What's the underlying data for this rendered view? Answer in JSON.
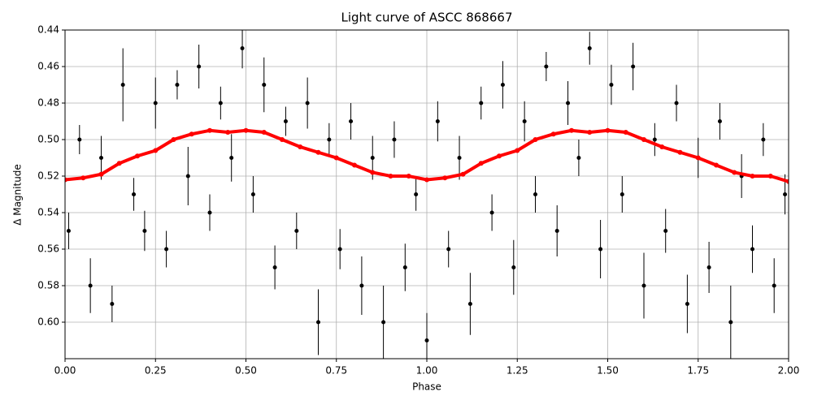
{
  "chart_data": {
    "type": "scatter",
    "title": "Light curve of ASCC 868667",
    "x_label": "Phase",
    "y_label": "Δ Magnitude",
    "xlim": [
      0,
      2
    ],
    "ylim": [
      0.62,
      0.44
    ],
    "y_inverted": true,
    "grid": true,
    "xticks": [
      {
        "value": 0,
        "label": "0.00"
      },
      0.25,
      {
        "value": 0.5,
        "label": "0.50"
      },
      0.75,
      {
        "value": 1,
        "label": "1.00"
      },
      1.25,
      {
        "value": 1.5,
        "label": "1.50"
      },
      1.75,
      {
        "value": 2,
        "label": "2.00"
      }
    ],
    "yticks": [
      0.44,
      0.46,
      0.48,
      {
        "value": 0.5,
        "label": "0.50"
      },
      0.52,
      0.54,
      0.56,
      0.58,
      {
        "value": 0.6,
        "label": "0.60"
      }
    ],
    "scatter": {
      "color": "#000000",
      "x": [
        0.01,
        0.04,
        0.07,
        0.1,
        0.13,
        0.16,
        0.19,
        0.22,
        0.25,
        0.28,
        0.31,
        0.34,
        0.37,
        0.4,
        0.43,
        0.46,
        0.49,
        0.52,
        0.55,
        0.58,
        0.61,
        0.64,
        0.67,
        0.7,
        0.73,
        0.76,
        0.79,
        0.82,
        0.85,
        0.88,
        0.91,
        0.94,
        0.97,
        1.0,
        1.03,
        1.06,
        1.09,
        1.12,
        1.15,
        1.18,
        1.21,
        1.24,
        1.27,
        1.3,
        1.33,
        1.36,
        1.39,
        1.42,
        1.45,
        1.48,
        1.51,
        1.54,
        1.57,
        1.6,
        1.63,
        1.66,
        1.69,
        1.72,
        1.75,
        1.78,
        1.81,
        1.84,
        1.87,
        1.9,
        1.93,
        1.96,
        1.99
      ],
      "values": [
        0.55,
        0.5,
        0.58,
        0.51,
        0.59,
        0.47,
        0.53,
        0.55,
        0.48,
        0.56,
        0.47,
        0.52,
        0.46,
        0.54,
        0.48,
        0.51,
        0.45,
        0.53,
        0.47,
        0.57,
        0.49,
        0.55,
        0.48,
        0.6,
        0.5,
        0.56,
        0.49,
        0.58,
        0.51,
        0.6,
        0.5,
        0.57,
        0.53,
        0.61,
        0.49,
        0.56,
        0.51,
        0.59,
        0.48,
        0.54,
        0.47,
        0.57,
        0.49,
        0.53,
        0.46,
        0.55,
        0.48,
        0.51,
        0.45,
        0.56,
        0.47,
        0.53,
        0.46,
        0.58,
        0.5,
        0.55,
        0.48,
        0.59,
        0.51,
        0.57,
        0.49,
        0.6,
        0.52,
        0.56,
        0.5,
        0.58,
        0.53
      ],
      "errors": [
        0.01,
        0.008,
        0.015,
        0.012,
        0.01,
        0.02,
        0.009,
        0.011,
        0.014,
        0.01,
        0.008,
        0.016,
        0.012,
        0.01,
        0.009,
        0.013,
        0.011,
        0.01,
        0.015,
        0.012,
        0.008,
        0.01,
        0.014,
        0.018,
        0.009,
        0.011,
        0.01,
        0.016,
        0.012,
        0.02,
        0.01,
        0.013,
        0.009,
        0.015,
        0.011,
        0.01,
        0.012,
        0.017,
        0.009,
        0.01,
        0.013,
        0.015,
        0.011,
        0.01,
        0.008,
        0.014,
        0.012,
        0.01,
        0.009,
        0.016,
        0.011,
        0.01,
        0.013,
        0.018,
        0.009,
        0.012,
        0.01,
        0.016,
        0.011,
        0.014,
        0.01,
        0.02,
        0.012,
        0.013,
        0.009,
        0.015,
        0.011
      ]
    },
    "curve": {
      "color": "#ff0000",
      "x": [
        0,
        0.05,
        0.1,
        0.15,
        0.2,
        0.25,
        0.3,
        0.35,
        0.4,
        0.45,
        0.5,
        0.55,
        0.6,
        0.65,
        0.7,
        0.75,
        0.8,
        0.85,
        0.9,
        0.95,
        1.0,
        1.05,
        1.1,
        1.15,
        1.2,
        1.25,
        1.3,
        1.35,
        1.4,
        1.45,
        1.5,
        1.55,
        1.6,
        1.65,
        1.7,
        1.75,
        1.8,
        1.85,
        1.9,
        1.95,
        2.0
      ],
      "values": [
        0.522,
        0.521,
        0.519,
        0.513,
        0.509,
        0.506,
        0.5,
        0.497,
        0.495,
        0.496,
        0.495,
        0.496,
        0.5,
        0.504,
        0.507,
        0.51,
        0.514,
        0.518,
        0.52,
        0.52,
        0.522,
        0.521,
        0.519,
        0.513,
        0.509,
        0.506,
        0.5,
        0.497,
        0.495,
        0.496,
        0.495,
        0.496,
        0.5,
        0.504,
        0.507,
        0.51,
        0.514,
        0.518,
        0.52,
        0.52,
        0.523
      ]
    }
  }
}
